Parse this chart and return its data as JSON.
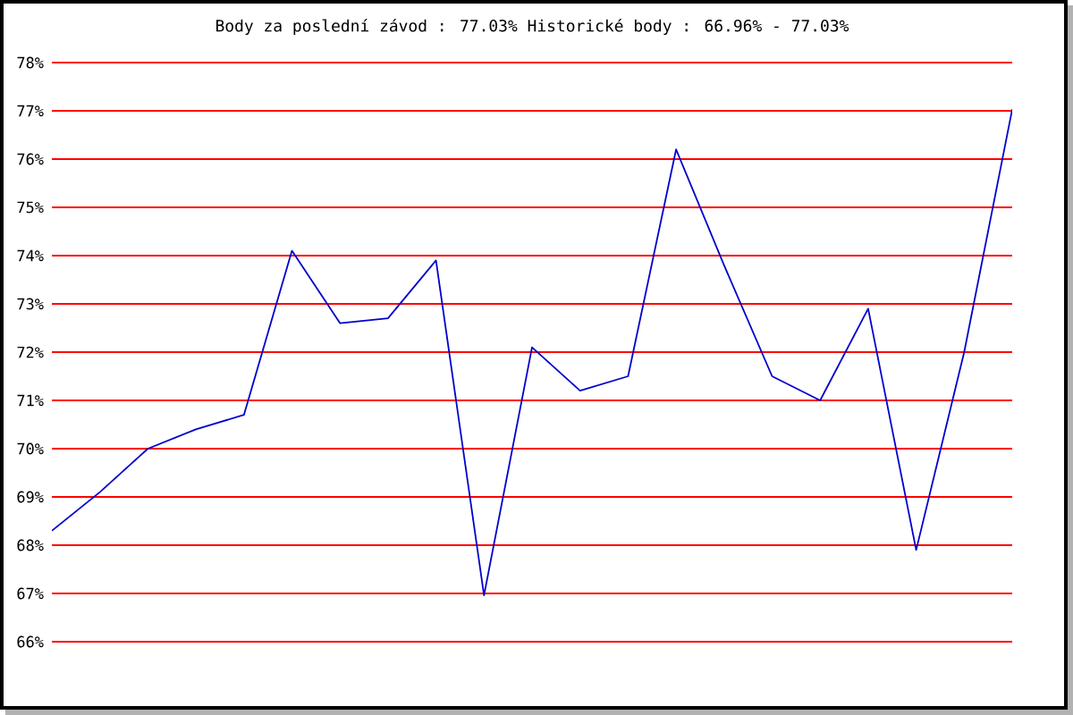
{
  "chart_data": {
    "type": "line",
    "title": "Body za poslední závod : 77.03%  Historické body : 66.96% - 77.03%",
    "categories": [
      null,
      null,
      null,
      null,
      null,
      null,
      null,
      null,
      null,
      null,
      null,
      null,
      null,
      null,
      null,
      null,
      null,
      null,
      null,
      null,
      null
    ],
    "values": [
      68.3,
      69.1,
      70.0,
      70.4,
      70.7,
      74.1,
      72.6,
      72.7,
      73.9,
      66.96,
      72.1,
      71.2,
      71.5,
      76.2,
      73.8,
      71.5,
      71.0,
      72.9,
      67.9,
      72.0,
      77.03
    ],
    "color": "#0000cc",
    "ylim": [
      66,
      78
    ],
    "yticks": [
      {
        "value": 66,
        "label": "66%"
      },
      {
        "value": 67,
        "label": "67%"
      },
      {
        "value": 68,
        "label": "68%"
      },
      {
        "value": 69,
        "label": "69%"
      },
      {
        "value": 70,
        "label": "70%"
      },
      {
        "value": 71,
        "label": "71%"
      },
      {
        "value": 72,
        "label": "72%"
      },
      {
        "value": 73,
        "label": "73%"
      },
      {
        "value": 74,
        "label": "74%"
      },
      {
        "value": 75,
        "label": "75%"
      },
      {
        "value": 76,
        "label": "76%"
      },
      {
        "value": 77,
        "label": "77%"
      },
      {
        "value": 78,
        "label": "78%"
      }
    ],
    "grid": "y",
    "tick_labels": "y"
  }
}
